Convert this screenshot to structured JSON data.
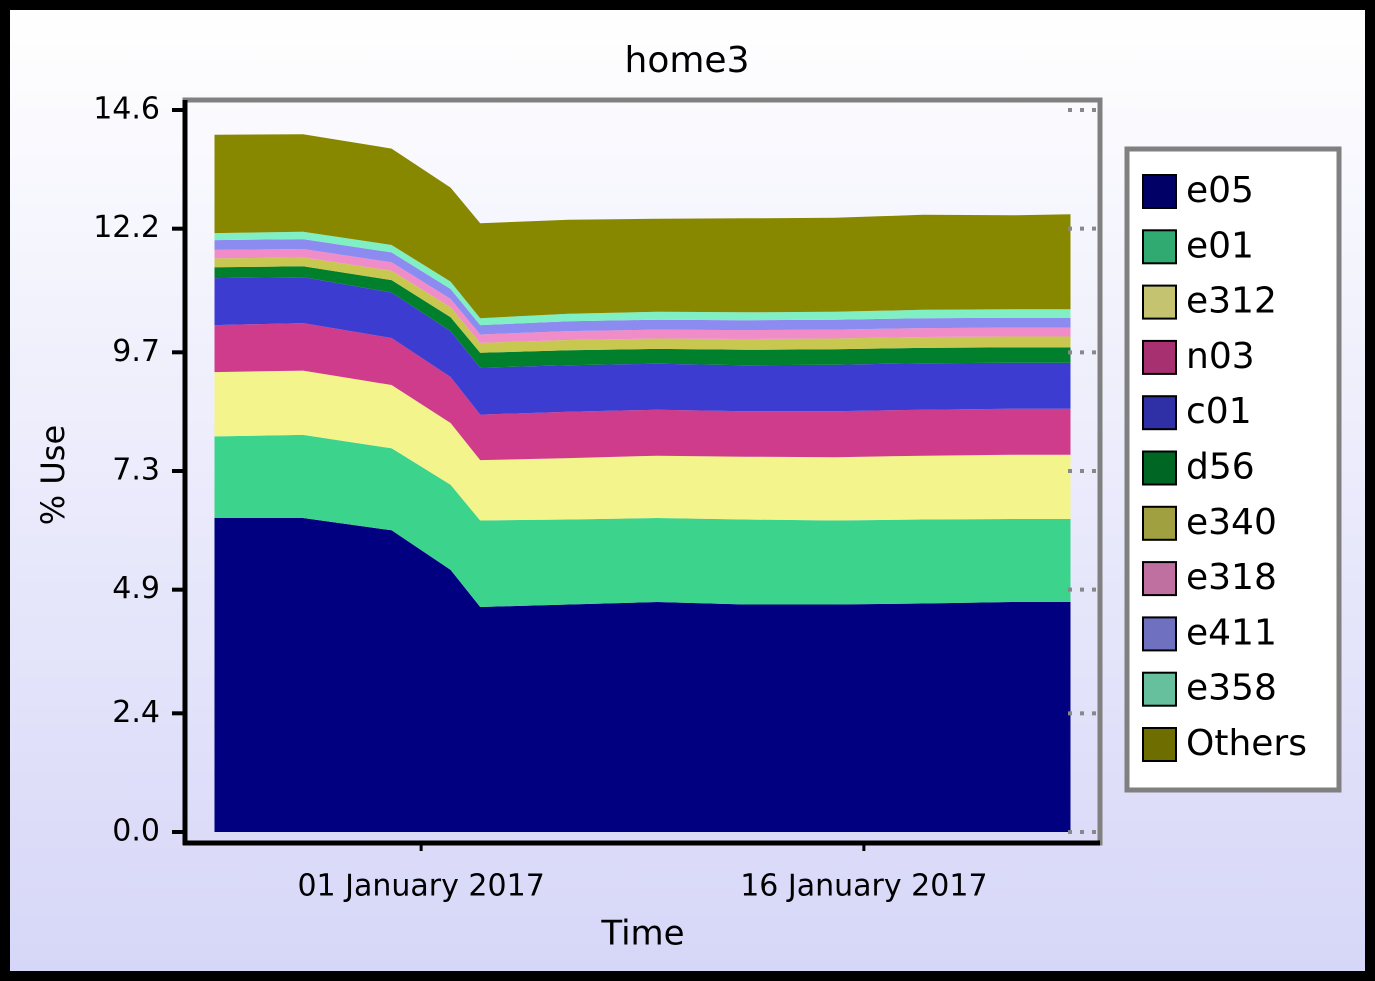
{
  "chart_data": {
    "type": "stacked_area",
    "title": "home3",
    "x_label": "Time",
    "y_label": "% Use",
    "x": [
      "2016-12-25",
      "2016-12-28",
      "2016-12-31",
      "2017-01-02",
      "2017-01-03",
      "2017-01-06",
      "2017-01-09",
      "2017-01-12",
      "2017-01-15",
      "2017-01-18",
      "2017-01-21",
      "2017-01-23"
    ],
    "xlim": [
      "2016-12-24",
      "2017-01-24"
    ],
    "xticks": [
      {
        "value": "2017-01-01",
        "label": "01 January 2017"
      },
      {
        "value": "2017-01-16",
        "label": "16 January 2017"
      }
    ],
    "ylim": [
      0,
      14.6
    ],
    "yticks": [
      {
        "value": 0,
        "label": "0.0"
      },
      2.4,
      4.9,
      7.3,
      9.7,
      12.2,
      14.6
    ],
    "legend": "right",
    "series": [
      {
        "name": "e05",
        "color": "#000080",
        "values": [
          6.35,
          6.35,
          6.1,
          5.3,
          4.55,
          4.6,
          4.65,
          4.6,
          4.6,
          4.62,
          4.65,
          4.65
        ]
      },
      {
        "name": "e01",
        "color": "#3cd48c",
        "values": [
          1.65,
          1.68,
          1.66,
          1.72,
          1.75,
          1.72,
          1.7,
          1.72,
          1.7,
          1.7,
          1.68,
          1.68
        ]
      },
      {
        "name": "e312",
        "color": "#f4f48c",
        "values": [
          1.3,
          1.3,
          1.28,
          1.25,
          1.22,
          1.24,
          1.26,
          1.27,
          1.28,
          1.29,
          1.3,
          1.3
        ]
      },
      {
        "name": "n03",
        "color": "#d03c8c",
        "values": [
          0.95,
          0.96,
          0.95,
          0.93,
          0.92,
          0.94,
          0.93,
          0.92,
          0.93,
          0.93,
          0.93,
          0.93
        ]
      },
      {
        "name": "c01",
        "color": "#3c3cd0",
        "values": [
          0.95,
          0.93,
          0.92,
          0.93,
          0.95,
          0.94,
          0.93,
          0.93,
          0.94,
          0.94,
          0.93,
          0.93
        ]
      },
      {
        "name": "d56",
        "color": "#00802c",
        "values": [
          0.22,
          0.22,
          0.25,
          0.28,
          0.3,
          0.3,
          0.3,
          0.31,
          0.31,
          0.31,
          0.31,
          0.31
        ]
      },
      {
        "name": "e340",
        "color": "#c8c850",
        "values": [
          0.18,
          0.18,
          0.19,
          0.2,
          0.2,
          0.21,
          0.21,
          0.22,
          0.22,
          0.22,
          0.22,
          0.22
        ]
      },
      {
        "name": "e318",
        "color": "#f08cc8",
        "values": [
          0.17,
          0.17,
          0.17,
          0.17,
          0.17,
          0.18,
          0.18,
          0.18,
          0.18,
          0.18,
          0.18,
          0.18
        ]
      },
      {
        "name": "e411",
        "color": "#8c8cf0",
        "values": [
          0.2,
          0.2,
          0.2,
          0.2,
          0.19,
          0.2,
          0.2,
          0.2,
          0.2,
          0.2,
          0.2,
          0.2
        ]
      },
      {
        "name": "e358",
        "color": "#80f0c4",
        "values": [
          0.14,
          0.15,
          0.15,
          0.15,
          0.14,
          0.15,
          0.16,
          0.16,
          0.16,
          0.17,
          0.17,
          0.17
        ]
      },
      {
        "name": "Others",
        "color": "#888800",
        "values": [
          1.99,
          1.97,
          1.95,
          1.9,
          1.92,
          1.9,
          1.88,
          1.9,
          1.9,
          1.92,
          1.9,
          1.92
        ]
      }
    ]
  }
}
